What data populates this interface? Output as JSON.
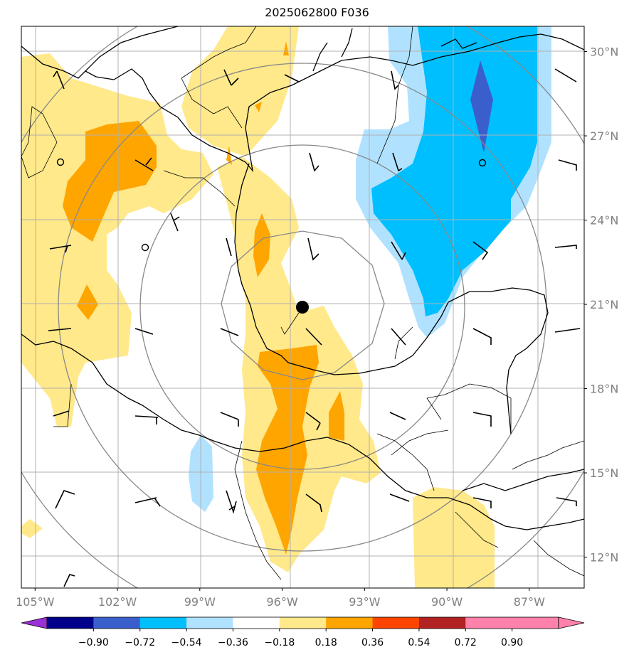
{
  "title": "2025062800 F036",
  "map": {
    "lon_range": [
      -105.5,
      -85.0
    ],
    "lat_range": [
      10.9,
      30.9
    ],
    "lon_ticks": [
      {
        "value": -105,
        "label": "105°W"
      },
      {
        "value": -102,
        "label": "102°W"
      },
      {
        "value": -99,
        "label": "99°W"
      },
      {
        "value": -96,
        "label": "96°W"
      },
      {
        "value": -93,
        "label": "93°W"
      },
      {
        "value": -90,
        "label": "90°W"
      },
      {
        "value": -87,
        "label": "87°W"
      }
    ],
    "lat_ticks": [
      {
        "value": 12,
        "label": "12°N"
      },
      {
        "value": 15,
        "label": "15°N"
      },
      {
        "value": 18,
        "label": "18°N"
      },
      {
        "value": 21,
        "label": "21°N"
      },
      {
        "value": 24,
        "label": "24°N"
      },
      {
        "value": 27,
        "label": "27°N"
      },
      {
        "value": 30,
        "label": "30°N"
      }
    ],
    "storm_center": {
      "lon": -95.4,
      "lat": 20.9
    },
    "range_rings_deg": [
      3,
      6,
      9,
      12
    ]
  },
  "colorbar": {
    "ticks": [
      "−0.90",
      "−0.72",
      "−0.54",
      "−0.36",
      "−0.18",
      "0.18",
      "0.36",
      "0.54",
      "0.72",
      "0.90"
    ],
    "colors": [
      "#9b30d8",
      "#00008b",
      "#3a5fcd",
      "#00bfff",
      "#b0e2ff",
      "#ffffff",
      "#ffe98a",
      "#ffa500",
      "#ff4500",
      "#b22222",
      "#ff82ab",
      "#ff82ab"
    ],
    "palette": {
      "light_yellow": "#ffe98a",
      "orange": "#ffa500",
      "light_blue": "#b0e2ff",
      "blue": "#00bfff",
      "royal_blue": "#3a5fcd"
    }
  }
}
